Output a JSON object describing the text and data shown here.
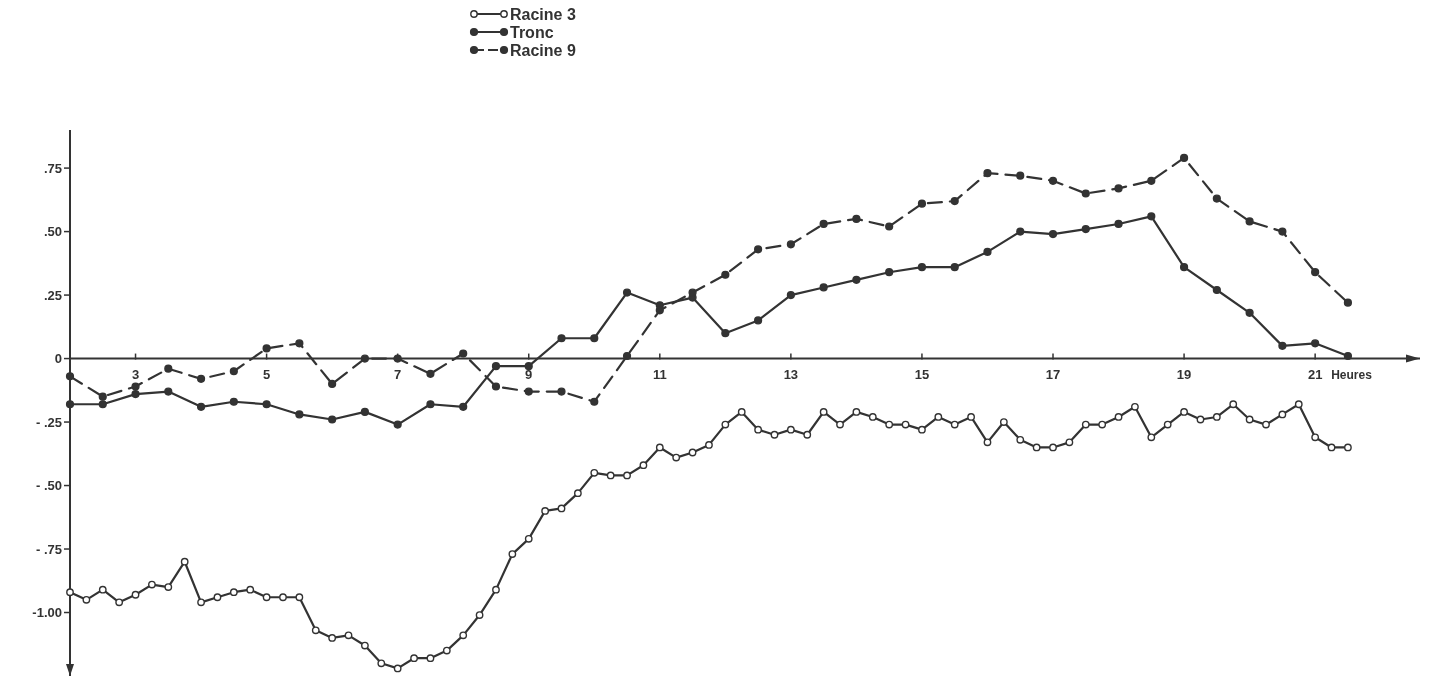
{
  "chart_data": {
    "type": "line",
    "xlabel": "Heures",
    "xlim": [
      2,
      22.6
    ],
    "ylim": [
      -1.25,
      0.9
    ],
    "xticks": [
      3,
      5,
      7,
      9,
      11,
      13,
      15,
      17,
      19,
      21
    ],
    "yticks": [
      {
        "value": 0.75,
        "label": ".75"
      },
      {
        "value": 0.5,
        "label": ".50"
      },
      {
        "value": 0.25,
        "label": ".25"
      },
      {
        "value": 0,
        "label": "0"
      },
      {
        "value": -0.25,
        "label": "- .25"
      },
      {
        "value": -0.5,
        "label": "- .50"
      },
      {
        "value": -0.75,
        "label": "- .75"
      },
      {
        "value": -1,
        "label": "-1.00"
      }
    ],
    "legend": "top",
    "grid": false,
    "series": [
      {
        "name": "Racine 3",
        "color": "#333333",
        "marker": "circle",
        "line_style": "solid",
        "x": [
          2,
          2.25,
          2.5,
          2.75,
          3,
          3.25,
          3.5,
          3.75,
          4,
          4.25,
          4.5,
          4.75,
          5,
          5.25,
          5.5,
          5.75,
          6,
          6.25,
          6.5,
          6.75,
          7,
          7.25,
          7.5,
          7.75,
          8,
          8.25,
          8.5,
          8.75,
          9,
          9.25,
          9.5,
          9.75,
          10,
          10.25,
          10.5,
          10.75,
          11,
          11.25,
          11.5,
          11.75,
          12,
          12.25,
          12.5,
          12.75,
          13,
          13.25,
          13.5,
          13.75,
          14,
          14.25,
          14.5,
          14.75,
          15,
          15.25,
          15.5,
          15.75,
          16,
          16.25,
          16.5,
          16.75,
          17,
          17.25,
          17.5,
          17.75,
          18,
          18.25,
          18.5,
          18.75,
          19,
          19.25,
          19.5,
          19.75,
          20,
          20.25,
          20.5,
          20.75,
          21,
          21.25,
          21.5
        ],
        "values": [
          -0.92,
          -0.95,
          -0.91,
          -0.96,
          -0.93,
          -0.89,
          -0.9,
          -0.8,
          -0.96,
          -0.94,
          -0.92,
          -0.91,
          -0.94,
          -0.94,
          -0.94,
          -1.07,
          -1.1,
          -1.09,
          -1.13,
          -1.2,
          -1.22,
          -1.18,
          -1.18,
          -1.15,
          -1.09,
          -1.01,
          -0.91,
          -0.77,
          -0.71,
          -0.6,
          -0.59,
          -0.53,
          -0.45,
          -0.46,
          -0.46,
          -0.42,
          -0.35,
          -0.39,
          -0.37,
          -0.34,
          -0.26,
          -0.21,
          -0.28,
          -0.3,
          -0.28,
          -0.3,
          -0.21,
          -0.26,
          -0.21,
          -0.23,
          -0.26,
          -0.26,
          -0.28,
          -0.23,
          -0.26,
          -0.23,
          -0.33,
          -0.25,
          -0.32,
          -0.35,
          -0.35,
          -0.33,
          -0.26,
          -0.26,
          -0.23,
          -0.19,
          -0.31,
          -0.26,
          -0.21,
          -0.24,
          -0.23,
          -0.18,
          -0.24,
          -0.26,
          -0.22,
          -0.18,
          -0.31,
          -0.35,
          -0.35
        ]
      },
      {
        "name": "Tronc",
        "color": "#333333",
        "marker": "circle",
        "line_style": "solid",
        "x": [
          2,
          2.5,
          3,
          3.5,
          4,
          4.5,
          5,
          5.5,
          6,
          6.5,
          7,
          7.5,
          8,
          8.5,
          9,
          9.5,
          10,
          10.5,
          11,
          11.5,
          12,
          12.5,
          13,
          13.5,
          14,
          14.5,
          15,
          15.5,
          16,
          16.5,
          17,
          17.5,
          18,
          18.5,
          19,
          19.5,
          20,
          20.5,
          21,
          21.5
        ],
        "values": [
          -0.18,
          -0.18,
          -0.14,
          -0.13,
          -0.19,
          -0.17,
          -0.18,
          -0.22,
          -0.24,
          -0.21,
          -0.26,
          -0.18,
          -0.19,
          -0.03,
          -0.03,
          0.08,
          0.08,
          0.26,
          0.21,
          0.24,
          0.1,
          0.15,
          0.25,
          0.28,
          0.31,
          0.34,
          0.36,
          0.36,
          0.42,
          0.5,
          0.49,
          0.51,
          0.53,
          0.56,
          0.36,
          0.27,
          0.18,
          0.05,
          0.06,
          0.01
        ]
      },
      {
        "name": "Racine 9",
        "color": "#333333",
        "marker": "circle",
        "line_style": "dashed",
        "x": [
          2,
          2.5,
          3,
          3.5,
          4,
          4.5,
          5,
          5.5,
          6,
          6.5,
          7,
          7.5,
          8,
          8.5,
          9,
          9.5,
          10,
          10.5,
          11,
          11.5,
          12,
          12.5,
          13,
          13.5,
          14,
          14.5,
          15,
          15.5,
          16,
          16.5,
          17,
          17.5,
          18,
          18.5,
          19,
          19.5,
          20,
          20.5,
          21,
          21.5
        ],
        "values": [
          -0.07,
          -0.15,
          -0.11,
          -0.04,
          -0.08,
          -0.05,
          0.04,
          0.06,
          -0.1,
          0,
          0,
          -0.06,
          0.02,
          -0.11,
          -0.13,
          -0.13,
          -0.17,
          0.01,
          0.19,
          0.26,
          0.33,
          0.43,
          0.45,
          0.53,
          0.55,
          0.52,
          0.61,
          0.62,
          0.73,
          0.72,
          0.7,
          0.65,
          0.67,
          0.7,
          0.79,
          0.63,
          0.54,
          0.5,
          0.34,
          0.22
        ]
      }
    ]
  }
}
